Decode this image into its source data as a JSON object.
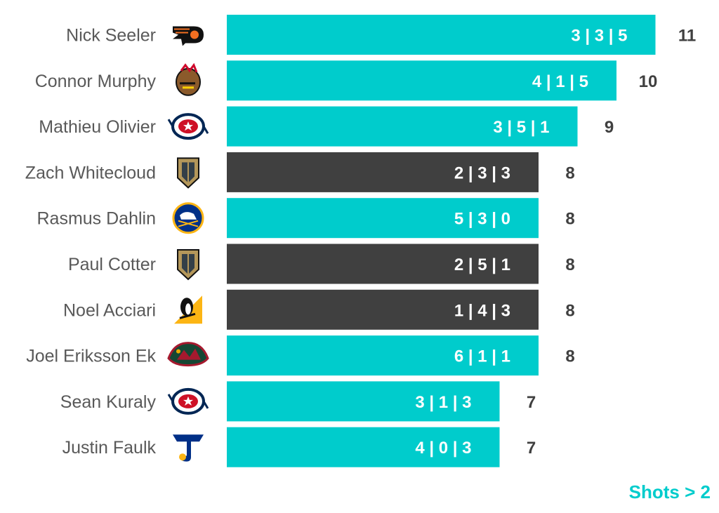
{
  "chart_data": {
    "type": "bar",
    "orientation": "horizontal",
    "categories": [
      "Nick Seeler",
      "Connor Murphy",
      "Mathieu Olivier",
      "Zach Whitecloud",
      "Rasmus Dahlin",
      "Paul Cotter",
      "Noel Acciari",
      "Joel Eriksson Ek",
      "Sean Kuraly",
      "Justin Faulk"
    ],
    "values": [
      11,
      10,
      9,
      8,
      8,
      8,
      8,
      8,
      7,
      7
    ],
    "bar_labels": [
      "3 | 3 | 5",
      "4 | 1 | 5",
      "3 | 5 | 1",
      "2 | 3 | 3",
      "5 | 3 | 0",
      "2 | 5 | 1",
      "1 | 4 | 3",
      "6 | 1 | 1",
      "3 | 1 | 3",
      "4 | 0 | 3"
    ],
    "total_labels": [
      "11",
      "10",
      "9",
      "8",
      "8",
      "8",
      "8",
      "8",
      "7",
      "7"
    ],
    "team_logos": [
      "flyers-logo",
      "blackhawks-logo",
      "blue-jackets-logo",
      "golden-knights-logo",
      "sabres-logo",
      "golden-knights-logo",
      "penguins-logo",
      "wild-logo",
      "blue-jackets-logo",
      "blues-logo"
    ],
    "bar_colors": [
      "#00cccc",
      "#00cccc",
      "#00cccc",
      "#404040",
      "#00cccc",
      "#404040",
      "#404040",
      "#00cccc",
      "#00cccc",
      "#00cccc"
    ],
    "colors": {
      "teal": "#00cccc",
      "dark": "#404040",
      "name_text": "#595959"
    },
    "grid": false,
    "legend": "none"
  },
  "footnote": "Shots > 2"
}
